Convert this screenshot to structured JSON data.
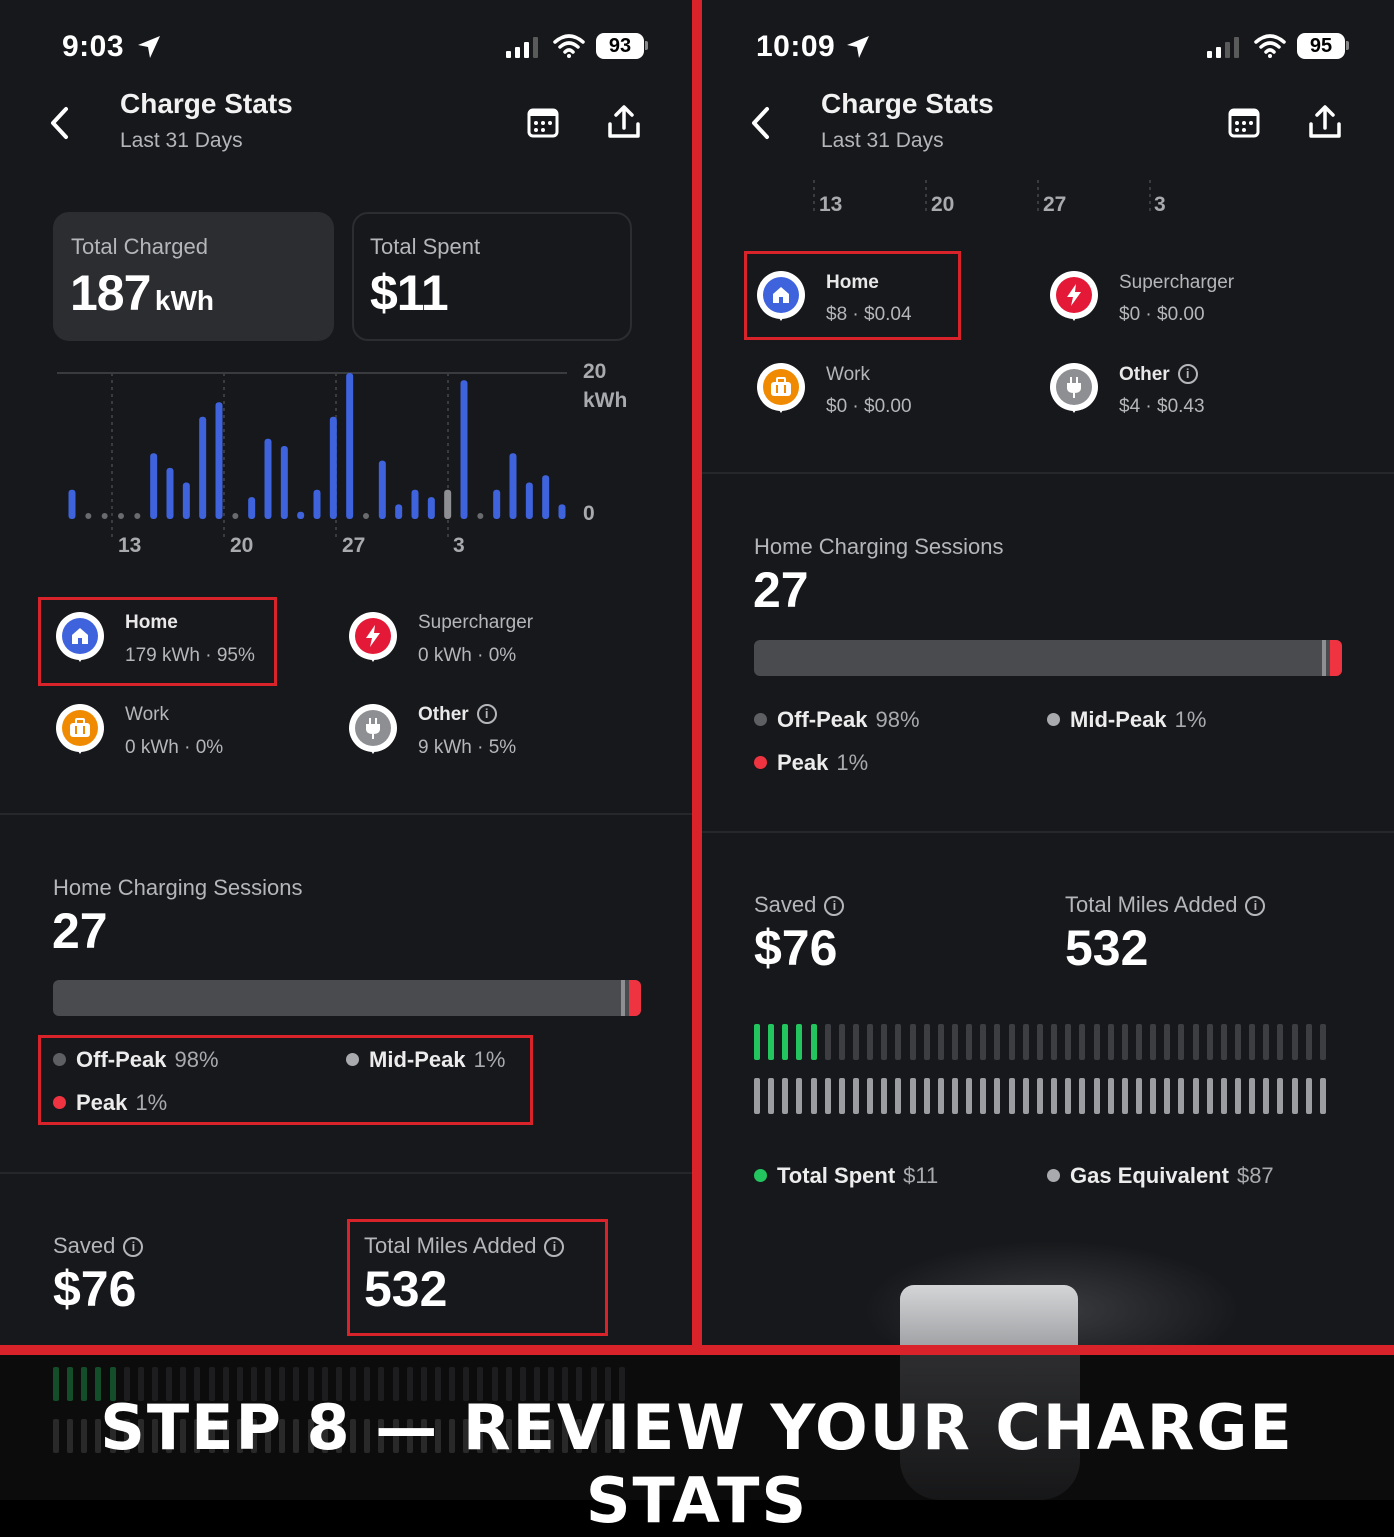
{
  "left": {
    "status": {
      "time": "9:03",
      "battery": "93"
    },
    "header": {
      "title": "Charge Stats",
      "subtitle": "Last 31 Days"
    },
    "cards": {
      "total_charged": {
        "label": "Total Charged",
        "value": "187",
        "unit": "kWh"
      },
      "total_spent": {
        "label": "Total Spent",
        "value": "$11"
      }
    },
    "chart_data": {
      "type": "bar",
      "unit": "kWh",
      "ylim": [
        0,
        20
      ],
      "y_tick_labels": [
        "20",
        "kWh",
        "0"
      ],
      "x_tick_labels": [
        "13",
        "20",
        "27",
        "3"
      ],
      "values": [
        4,
        0,
        0,
        0,
        0,
        9,
        7,
        5,
        14,
        16,
        0,
        3,
        11,
        10,
        1,
        4,
        14,
        20,
        0,
        8,
        2,
        4,
        3,
        4,
        19,
        0,
        4,
        9,
        5,
        6,
        2
      ],
      "highlight_index": 23,
      "colors": {
        "bar": "#3e63dd",
        "highlight": "#8e8f92",
        "zero_dot": "#6a6b6e"
      }
    },
    "locations": [
      {
        "name": "Home",
        "value": "179 kWh · 95%",
        "icon": "home-icon",
        "color": "#3e63dd"
      },
      {
        "name": "Supercharger",
        "value": "0 kWh · 0%",
        "icon": "bolt-icon",
        "color": "#e31937"
      },
      {
        "name": "Work",
        "value": "0 kWh · 0%",
        "icon": "briefcase-icon",
        "color": "#f08a00"
      },
      {
        "name": "Other",
        "value": "9 kWh · 5%",
        "icon": "plug-icon",
        "color": "#8e8f92"
      }
    ],
    "sessions": {
      "label": "Home Charging Sessions",
      "count": "27",
      "off_peak": {
        "label": "Off-Peak",
        "pct": "98%"
      },
      "mid_peak": {
        "label": "Mid-Peak",
        "pct": "1%"
      },
      "peak": {
        "label": "Peak",
        "pct": "1%"
      }
    },
    "saved": {
      "label": "Saved",
      "value": "$76"
    },
    "miles": {
      "label": "Total Miles Added",
      "value": "532"
    }
  },
  "right": {
    "status": {
      "time": "10:09",
      "battery": "95"
    },
    "header": {
      "title": "Charge Stats",
      "subtitle": "Last 31 Days"
    },
    "x_tick_labels": [
      "13",
      "20",
      "27",
      "3"
    ],
    "locations": [
      {
        "name": "Home",
        "value": "$8 · $0.04",
        "icon": "home-icon",
        "color": "#3e63dd"
      },
      {
        "name": "Supercharger",
        "value": "$0 · $0.00",
        "icon": "bolt-icon",
        "color": "#e31937"
      },
      {
        "name": "Work",
        "value": "$0 · $0.00",
        "icon": "briefcase-icon",
        "color": "#f08a00"
      },
      {
        "name": "Other",
        "value": "$4 · $0.43",
        "icon": "plug-icon",
        "color": "#8e8f92"
      }
    ],
    "sessions": {
      "label": "Home Charging Sessions",
      "count": "27",
      "off_peak": {
        "label": "Off-Peak",
        "pct": "98%"
      },
      "mid_peak": {
        "label": "Mid-Peak",
        "pct": "1%"
      },
      "peak": {
        "label": "Peak",
        "pct": "1%"
      }
    },
    "saved": {
      "label": "Saved",
      "value": "$76"
    },
    "miles": {
      "label": "Total Miles Added",
      "value": "532"
    },
    "cost_compare": {
      "total_spent": {
        "label": "Total Spent",
        "value": "$11"
      },
      "gas_equivalent": {
        "label": "Gas Equivalent",
        "value": "$87"
      },
      "total_spent_fraction": 0.126
    }
  },
  "caption": "STEP 8 — REVIEW YOUR CHARGE STATS",
  "colors": {
    "accent_red": "#d8232a",
    "green": "#22c55e",
    "peak_red": "#ef3340"
  }
}
